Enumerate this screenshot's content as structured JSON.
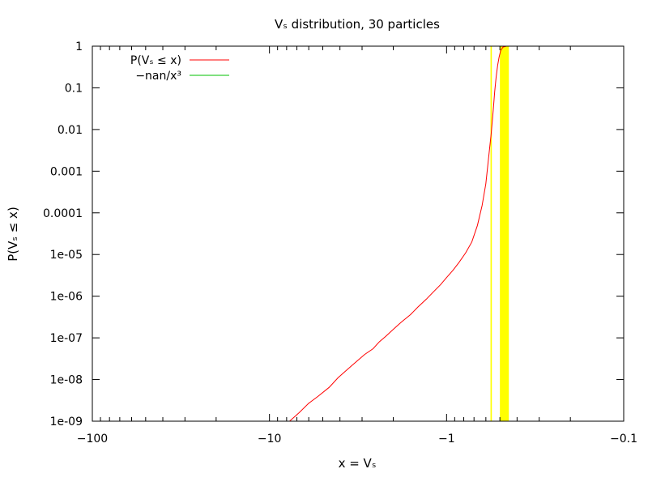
{
  "chart_data": {
    "type": "line",
    "title": "Vₛ distribution, 30 particles",
    "xlabel": "x = Vₛ",
    "ylabel": "P(Vₛ ≤ x)",
    "x_axis": {
      "scale": "negative-log",
      "range": [
        -100,
        -0.1
      ],
      "ticks": [
        -100,
        -10,
        -1,
        -0.1
      ],
      "tick_labels": [
        "−100",
        "−10",
        "−1",
        "−0.1"
      ]
    },
    "y_axis": {
      "scale": "log",
      "range": [
        1e-09,
        1
      ],
      "ticks": [
        1e-09,
        1e-08,
        1e-07,
        1e-06,
        1e-05,
        0.0001,
        0.001,
        0.01,
        0.1,
        1
      ],
      "tick_labels": [
        "1e-09",
        "1e-08",
        "1e-07",
        "1e-06",
        "1e-05",
        "0.0001",
        "0.001",
        "0.01",
        "0.1",
        "1"
      ]
    },
    "grid": false,
    "legend": {
      "placement": "top-left",
      "entries": [
        {
          "label": "P(Vₛ ≤ x)",
          "color": "#ff0000"
        },
        {
          "label": "−nan/x³",
          "color": "#00c000"
        }
      ]
    },
    "series": [
      {
        "name": "P(Vₛ ≤ x)",
        "color": "#ff0000",
        "x": [
          -7.7,
          -6.8,
          -6.0,
          -5.3,
          -4.6,
          -4.1,
          -3.6,
          -3.2,
          -2.9,
          -2.6,
          -2.4,
          -2.2,
          -2.0,
          -1.8,
          -1.6,
          -1.45,
          -1.3,
          -1.18,
          -1.08,
          -1.0,
          -0.92,
          -0.85,
          -0.78,
          -0.72,
          -0.67,
          -0.63,
          -0.6,
          -0.58,
          -0.56,
          -0.545,
          -0.535,
          -0.525,
          -0.515,
          -0.505,
          -0.495,
          -0.48,
          -0.46
        ],
        "y": [
          1e-09,
          1.6e-09,
          2.7e-09,
          4e-09,
          6.5e-09,
          1.1e-08,
          1.8e-08,
          2.8e-08,
          4e-08,
          5.5e-08,
          8e-08,
          1.1e-07,
          1.6e-07,
          2.4e-07,
          3.6e-07,
          5.5e-07,
          8.5e-07,
          1.3e-06,
          1.9e-06,
          2.8e-06,
          4.2e-06,
          6.5e-06,
          1.1e-05,
          2e-05,
          5e-05,
          0.00015,
          0.0005,
          0.002,
          0.008,
          0.03,
          0.08,
          0.18,
          0.35,
          0.55,
          0.78,
          0.95,
          1.0
        ]
      },
      {
        "name": "−nan/x³",
        "color": "#00c000",
        "x": [],
        "y": []
      }
    ],
    "bands": [
      {
        "color": "#ffff00",
        "x_from": -0.5,
        "x_from_label": "",
        "x_to": -0.445,
        "x_to_label": ""
      },
      {
        "color": "#ffff00",
        "x_from": -0.565,
        "x_to": -0.555
      }
    ]
  }
}
